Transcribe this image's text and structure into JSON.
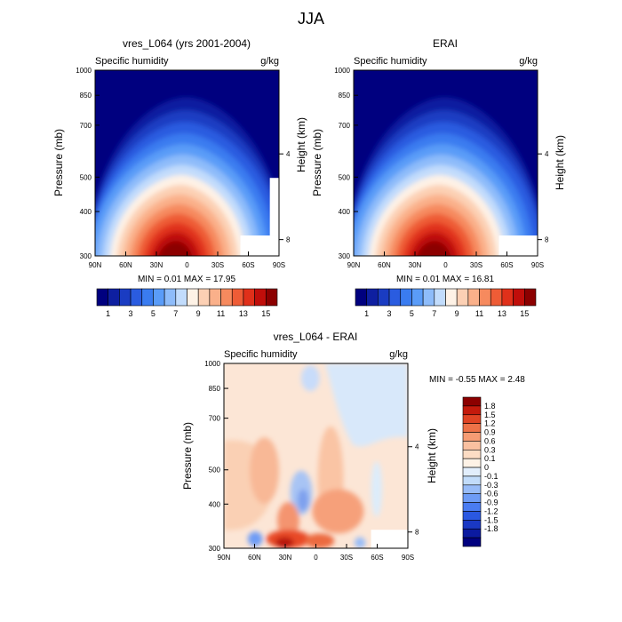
{
  "figure": {
    "title": "JJA",
    "panel_left_label": "Specific humidity",
    "panel_right_label": "g/kg",
    "ylabel_left": "Pressure (mb)",
    "ylabel_right": "Height (km)",
    "colorbar_colors": [
      "#00007f",
      "#0e1fa0",
      "#1a3cc2",
      "#2a5ce0",
      "#3a7cf0",
      "#5a9cf8",
      "#8ebcfa",
      "#c2dcfc",
      "#fef2e6",
      "#fcd0b4",
      "#fab08a",
      "#f68a5e",
      "#ee5c36",
      "#e0301a",
      "#c00e0a",
      "#8c0000"
    ],
    "diff_colors": [
      "#00007f",
      "#0b1aa0",
      "#1a38c4",
      "#2a58e2",
      "#4a7cf2",
      "#6e9cf6",
      "#98bcf8",
      "#c2dcfa",
      "#e2eefc",
      "#fef2e6",
      "#fcdcc4",
      "#fac0a0",
      "#f69c74",
      "#ee7248",
      "#e04424",
      "#c41a0c",
      "#8c0000"
    ]
  },
  "chart_data": [
    {
      "type": "heatmap",
      "title": "vres_L064 (yrs 2001-2004)",
      "x_ticks": [
        "90N",
        "60N",
        "30N",
        "0",
        "30S",
        "60S",
        "90S"
      ],
      "y_ticks": [
        "300",
        "400",
        "500",
        "700",
        "850",
        "1000"
      ],
      "height_ticks": [
        "8",
        "4"
      ],
      "ylim": [
        1000,
        300
      ],
      "stats": "MIN =  0.01  MAX =  17.95",
      "colorbar_labels": [
        "1",
        "3",
        "5",
        "7",
        "9",
        "11",
        "13",
        "15"
      ],
      "min": 0.01,
      "max": 17.95
    },
    {
      "type": "heatmap",
      "title": "ERAI",
      "x_ticks": [
        "90N",
        "60N",
        "30N",
        "0",
        "30S",
        "60S",
        "90S"
      ],
      "y_ticks": [
        "300",
        "400",
        "500",
        "700",
        "850",
        "1000"
      ],
      "height_ticks": [
        "8",
        "4"
      ],
      "ylim": [
        1000,
        300
      ],
      "stats": "MIN =  0.01  MAX =  16.81",
      "colorbar_labels": [
        "1",
        "3",
        "5",
        "7",
        "9",
        "11",
        "13",
        "15"
      ],
      "min": 0.01,
      "max": 16.81
    },
    {
      "type": "heatmap",
      "title": "vres_L064 - ERAI",
      "x_ticks": [
        "90N",
        "60N",
        "30N",
        "0",
        "30S",
        "60S",
        "90S"
      ],
      "y_ticks": [
        "300",
        "400",
        "500",
        "700",
        "850",
        "1000"
      ],
      "height_ticks": [
        "8",
        "4"
      ],
      "ylim": [
        1000,
        300
      ],
      "stats": "MIN = -0.55  MAX =   2.48",
      "colorbar_labels": [
        "1.8",
        "1.5",
        "1.2",
        "0.9",
        "0.6",
        "0.3",
        "0.1",
        "0",
        "-0.1",
        "-0.3",
        "-0.6",
        "-0.9",
        "-1.2",
        "-1.5",
        "-1.8"
      ],
      "min": -0.55,
      "max": 2.48
    }
  ]
}
